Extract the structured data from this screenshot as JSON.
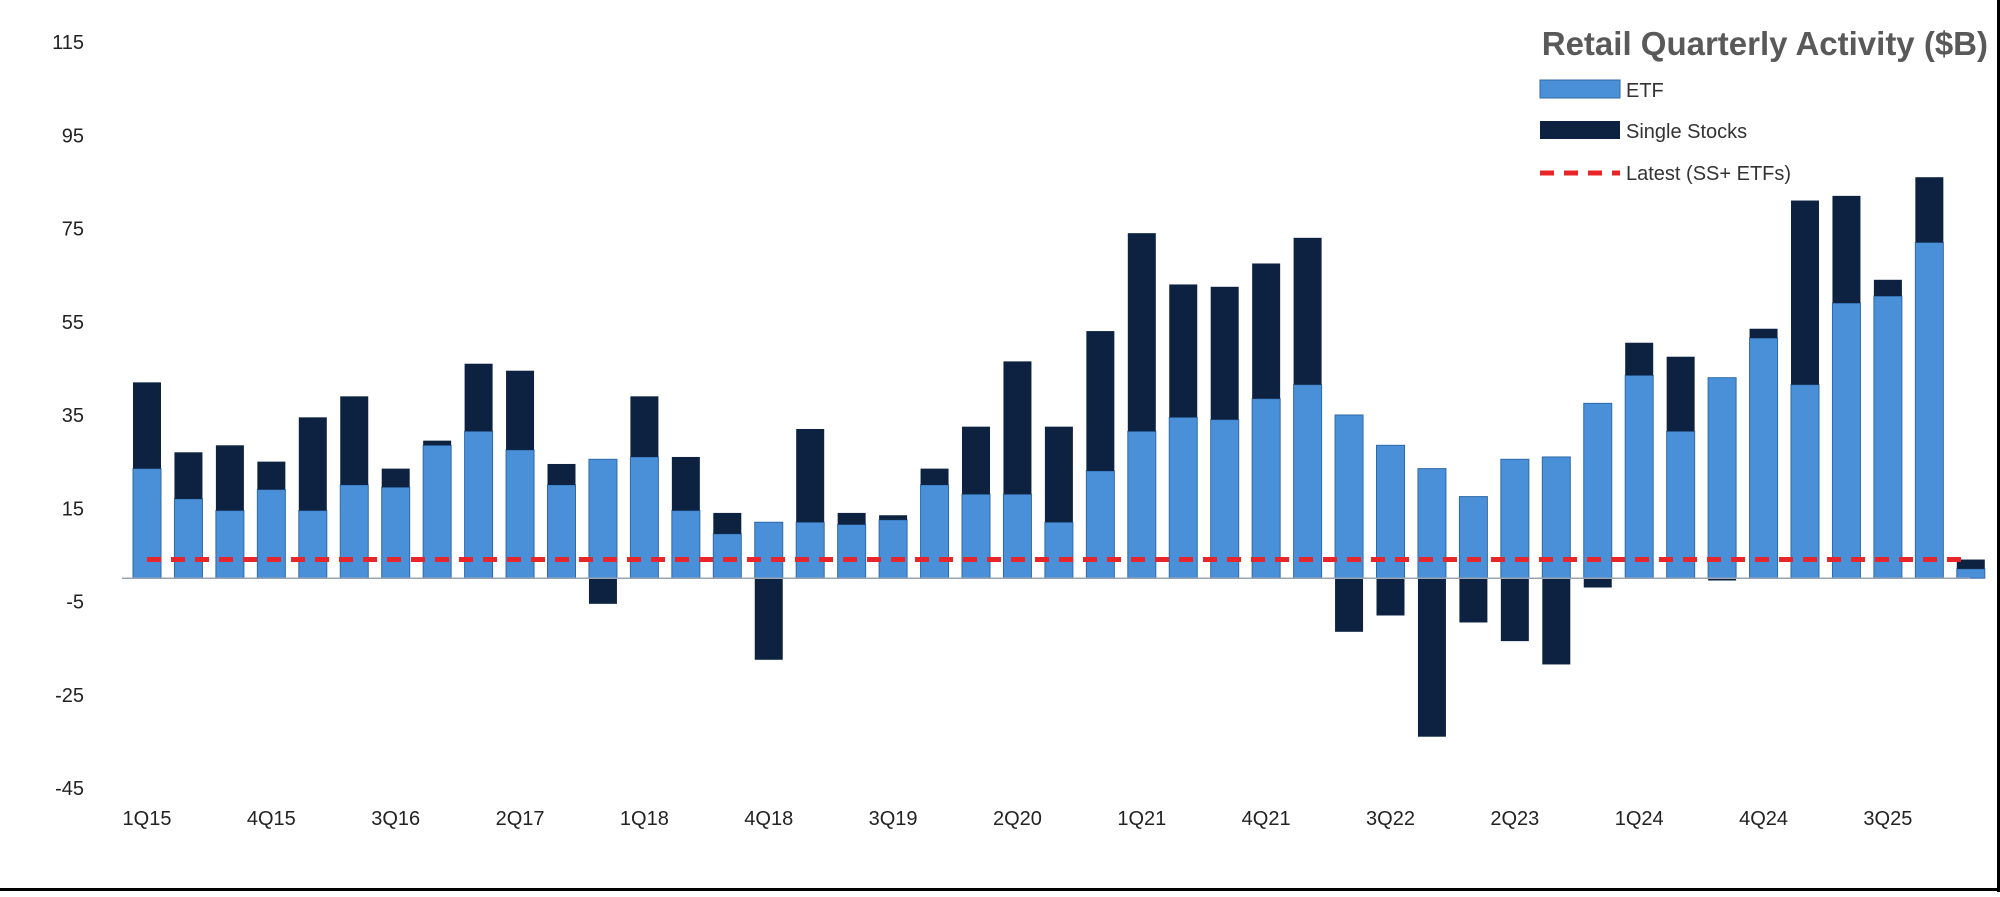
{
  "chart_data": {
    "type": "bar",
    "stacked": true,
    "title": "Retail Quarterly Activity ($B)",
    "xlabel": "",
    "ylabel": "",
    "ylim": [
      -45,
      115
    ],
    "yticks": [
      115,
      95,
      75,
      55,
      35,
      15,
      -5,
      -25,
      -45
    ],
    "grid": false,
    "legend_position": "top-right",
    "tick_labels": [
      "1Q15",
      "4Q15",
      "3Q16",
      "2Q17",
      "1Q18",
      "4Q18",
      "3Q19",
      "2Q20",
      "1Q21",
      "4Q21",
      "3Q22",
      "2Q23",
      "1Q24",
      "4Q24",
      "3Q25"
    ],
    "tick_label_every": 3,
    "categories": [
      "1Q15",
      "2Q15",
      "3Q15",
      "4Q15",
      "1Q16",
      "2Q16",
      "3Q16",
      "4Q16",
      "1Q17",
      "2Q17",
      "3Q17",
      "4Q17",
      "1Q18",
      "2Q18",
      "3Q18",
      "4Q18",
      "1Q19",
      "2Q19",
      "3Q19",
      "4Q19",
      "1Q20",
      "2Q20",
      "3Q20",
      "4Q20",
      "1Q21",
      "2Q21",
      "3Q21",
      "4Q21",
      "1Q22",
      "2Q22",
      "3Q22",
      "4Q22",
      "1Q23",
      "2Q23",
      "3Q23",
      "4Q23",
      "1Q24",
      "2Q24",
      "3Q24",
      "4Q24",
      "1Q25",
      "2Q25",
      "3Q25",
      "4Q25",
      "1Q26"
    ],
    "series": [
      {
        "name": "ETF",
        "color": "#4a90d9",
        "values": [
          23.5,
          17,
          14.5,
          19,
          14.5,
          20,
          19.5,
          28.5,
          31.5,
          27.5,
          20,
          25.5,
          26,
          14.5,
          9.5,
          12,
          12,
          11.5,
          12.5,
          20,
          18,
          18,
          12,
          23,
          31.5,
          34.5,
          34,
          38.5,
          41.5,
          35,
          28.5,
          23.5,
          17.5,
          25.5,
          26,
          37.5,
          43.5,
          31.5,
          43,
          51.5,
          41.5,
          59,
          60.5,
          72,
          2
        ]
      },
      {
        "name": "Single Stocks",
        "color": "#0d2240",
        "values": [
          18.5,
          10,
          14,
          6,
          20,
          19,
          4,
          1,
          14.5,
          17,
          4.5,
          -5.5,
          13,
          11.5,
          4.5,
          -17.5,
          20,
          2.5,
          1,
          3.5,
          14.5,
          28.5,
          20.5,
          30,
          42.5,
          28.5,
          28.5,
          29,
          31.5,
          -11.5,
          -8,
          -34,
          -9.5,
          -13.5,
          -18.5,
          -2,
          7,
          16,
          -0.5,
          2,
          39.5,
          23,
          3.5,
          14,
          2
        ]
      }
    ],
    "reference_line": {
      "name": "Latest (SS+ ETFs)",
      "value": 4,
      "color": "#e8262a",
      "style": "dashed"
    }
  }
}
